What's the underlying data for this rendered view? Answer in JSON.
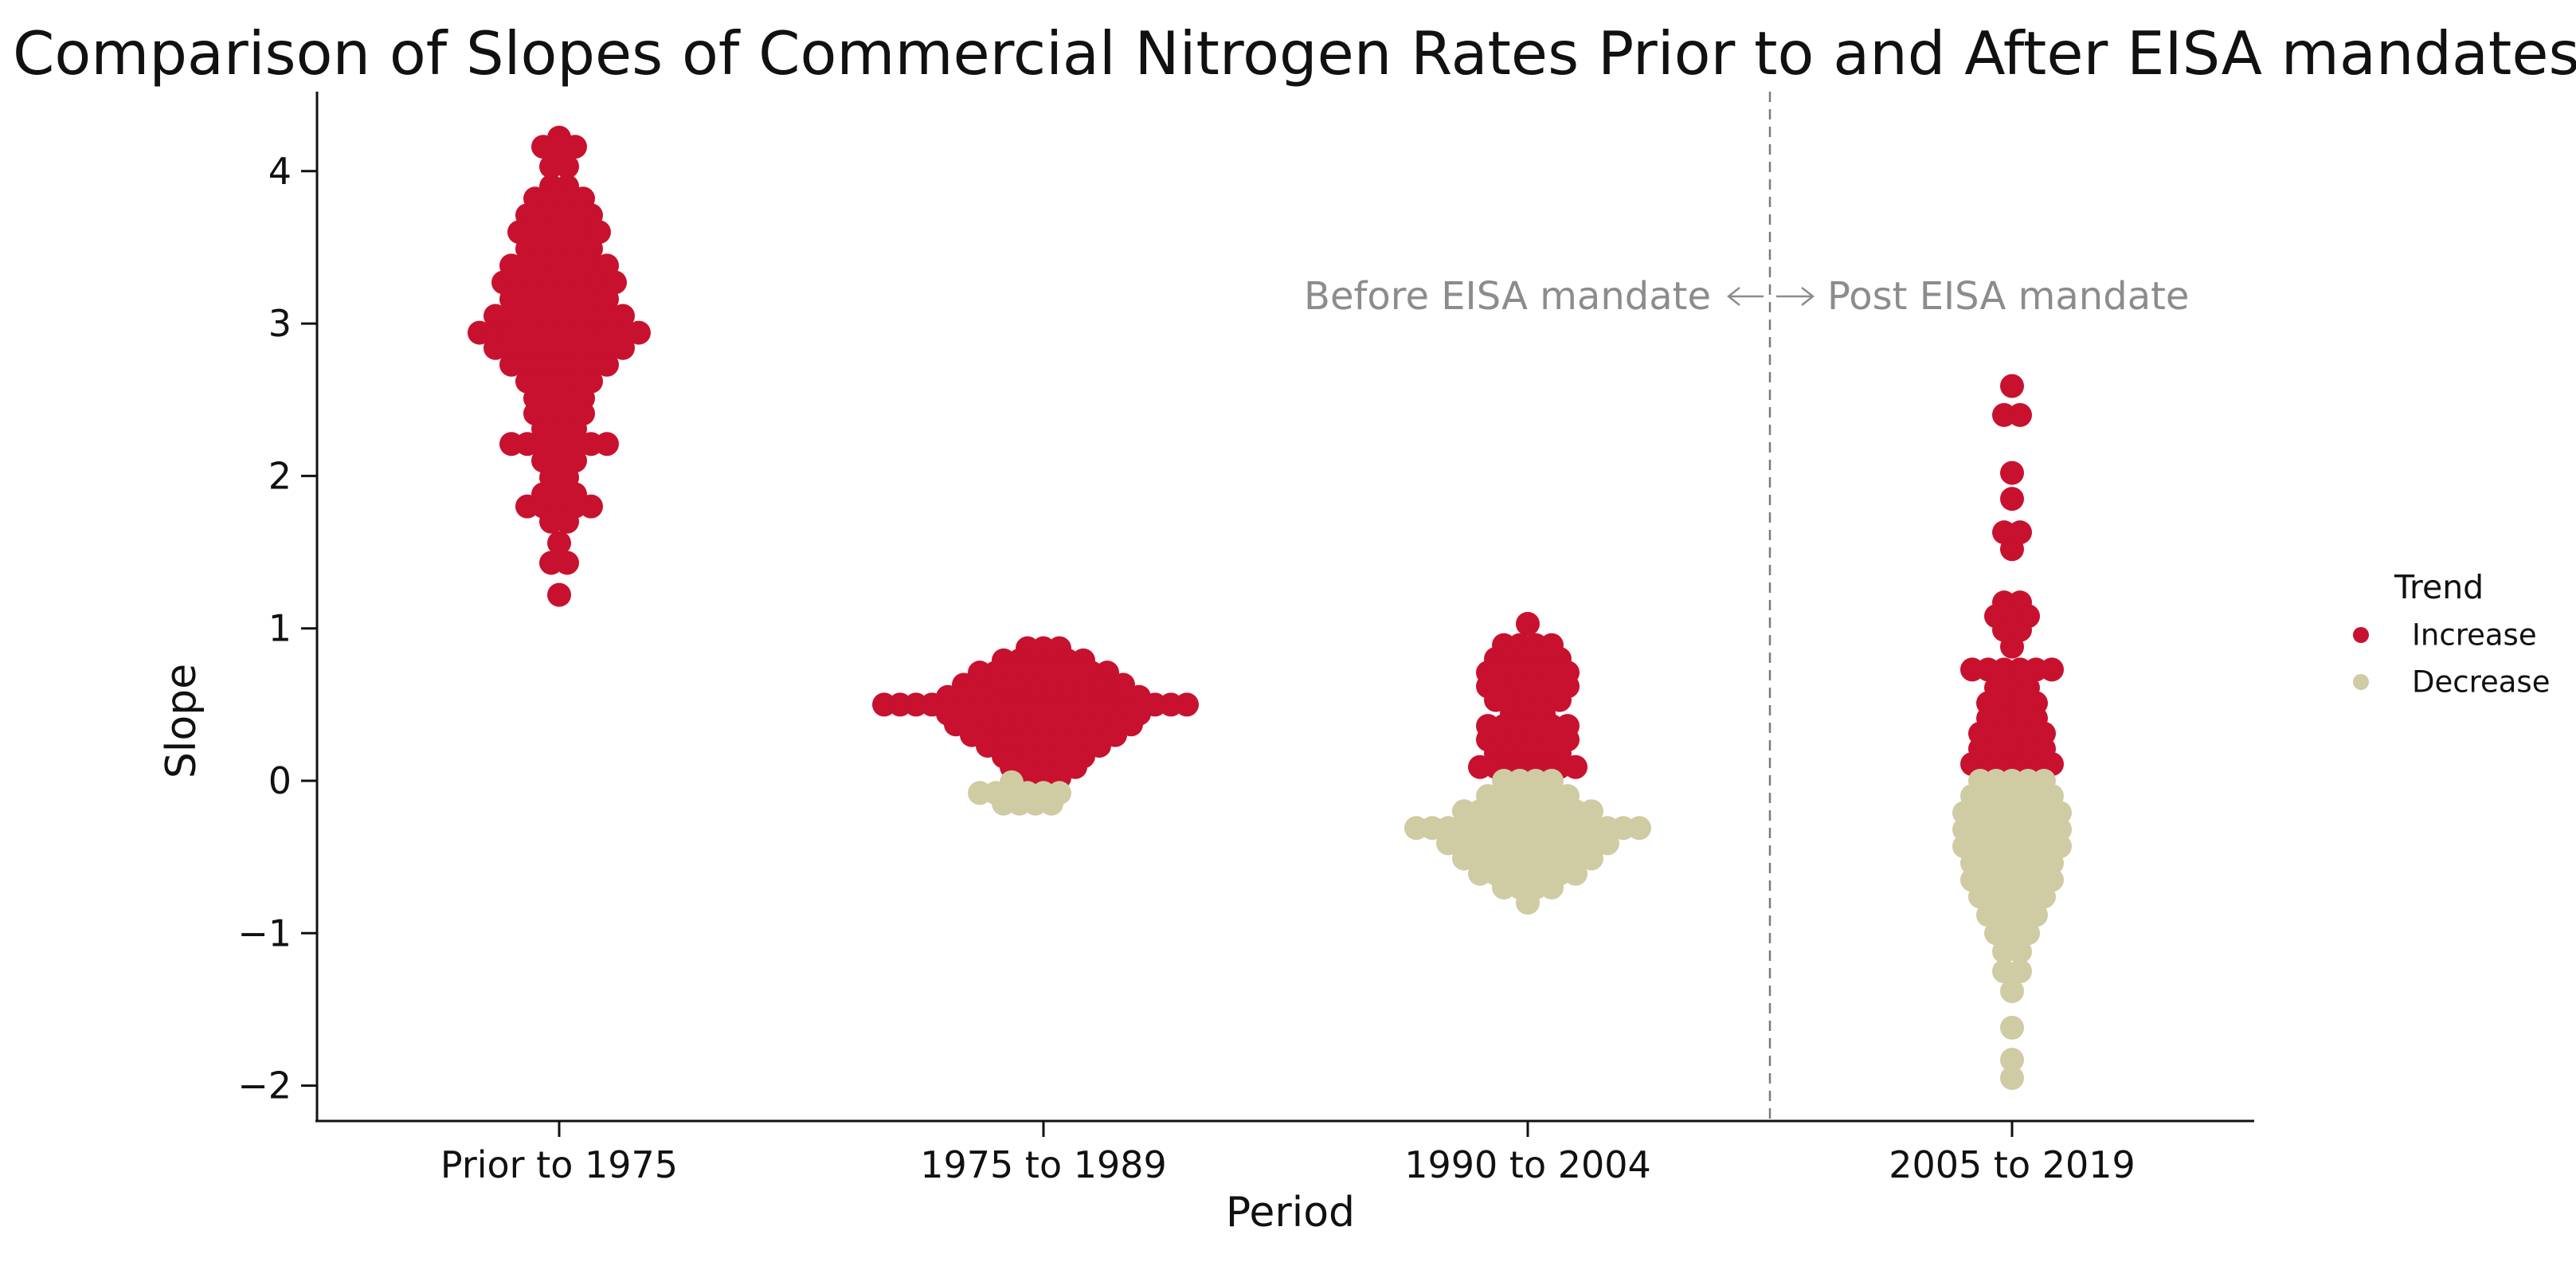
{
  "title": "Comparison of Slopes of Commercial Nitrogen Rates Prior to and After EISA mandates",
  "axes": {
    "x_label": "Period",
    "y_label": "Slope",
    "y_ticks": [
      4,
      3,
      2,
      1,
      0,
      -1,
      -2
    ]
  },
  "annotation": {
    "before": "Before EISA mandate",
    "after": "Post EISA mandate"
  },
  "legend": {
    "title": "Trend",
    "items": [
      {
        "label": "Increase",
        "color": "#c8112f"
      },
      {
        "label": "Decrease",
        "color": "#cfcba3"
      }
    ]
  },
  "chart_data": {
    "type": "scatter",
    "variant": "beeswarm",
    "title": "Comparison of Slopes of Commercial Nitrogen Rates Prior to and After EISA mandates",
    "xlabel": "Period",
    "ylabel": "Slope",
    "ylim": [
      -2.3,
      4.55
    ],
    "y_ticks": [
      4,
      3,
      2,
      1,
      0,
      -1,
      -2
    ],
    "grid": false,
    "legend_position": "right-outside",
    "categories": [
      "Prior to 1975",
      "1975 to 1989",
      "1990 to 2004",
      "2005 to 2019"
    ],
    "divider": {
      "position": "between 1990 to 2004 and 2005 to 2019",
      "label_left": "Before EISA mandate",
      "label_right": "Post EISA mandate"
    },
    "series": [
      {
        "name": "Increase",
        "color": "#c8112f"
      },
      {
        "name": "Decrease",
        "color": "#cfcba3"
      }
    ],
    "row_format": "[slope, dot_count, trend, optional_center_offset_in_dots]",
    "clusters": [
      {
        "category": "Prior to 1975",
        "rows": [
          [
            4.22,
            1,
            "Increase"
          ],
          [
            4.16,
            3,
            "Increase"
          ],
          [
            4.03,
            2,
            "Increase"
          ],
          [
            3.9,
            2,
            "Increase"
          ],
          [
            3.82,
            4,
            "Increase"
          ],
          [
            3.71,
            5,
            "Increase"
          ],
          [
            3.6,
            6,
            "Increase"
          ],
          [
            3.49,
            5,
            "Increase"
          ],
          [
            3.38,
            7,
            "Increase"
          ],
          [
            3.27,
            8,
            "Increase"
          ],
          [
            3.16,
            7,
            "Increase"
          ],
          [
            3.05,
            9,
            "Increase"
          ],
          [
            2.94,
            11,
            "Increase"
          ],
          [
            2.84,
            9,
            "Increase"
          ],
          [
            2.73,
            7,
            "Increase"
          ],
          [
            2.62,
            5,
            "Increase"
          ],
          [
            2.51,
            4,
            "Increase"
          ],
          [
            2.41,
            4,
            "Increase"
          ],
          [
            2.31,
            3,
            "Increase"
          ],
          [
            2.21,
            7,
            "Increase"
          ],
          [
            2.1,
            3,
            "Increase"
          ],
          [
            1.99,
            2,
            "Increase"
          ],
          [
            1.88,
            3,
            "Increase"
          ],
          [
            1.8,
            5,
            "Increase"
          ],
          [
            1.7,
            2,
            "Increase"
          ],
          [
            1.56,
            1,
            "Increase"
          ],
          [
            1.43,
            2,
            "Increase"
          ],
          [
            1.22,
            1,
            "Increase"
          ]
        ]
      },
      {
        "category": "1975 to 1989",
        "rows": [
          [
            0.87,
            3,
            "Increase"
          ],
          [
            0.79,
            6,
            "Increase"
          ],
          [
            0.71,
            9,
            "Increase"
          ],
          [
            0.63,
            11,
            "Increase"
          ],
          [
            0.55,
            13,
            "Increase"
          ],
          [
            0.5,
            20,
            "Increase",
            -0.5
          ],
          [
            0.44,
            13,
            "Increase"
          ],
          [
            0.37,
            12,
            "Increase"
          ],
          [
            0.3,
            10,
            "Increase"
          ],
          [
            0.23,
            8,
            "Increase"
          ],
          [
            0.16,
            6,
            "Increase"
          ],
          [
            0.09,
            5,
            "Increase"
          ],
          [
            0.02,
            3,
            "Increase"
          ],
          [
            -0.01,
            1,
            "Decrease",
            -2
          ],
          [
            -0.08,
            6,
            "Decrease",
            -1.5
          ],
          [
            -0.15,
            4,
            "Decrease",
            -1
          ]
        ]
      },
      {
        "category": "1990 to 2004",
        "rows": [
          [
            1.03,
            1,
            "Increase"
          ],
          [
            0.89,
            4,
            "Increase"
          ],
          [
            0.8,
            5,
            "Increase"
          ],
          [
            0.71,
            6,
            "Increase"
          ],
          [
            0.62,
            6,
            "Increase"
          ],
          [
            0.53,
            5,
            "Increase"
          ],
          [
            0.44,
            3,
            "Increase"
          ],
          [
            0.36,
            6,
            "Increase"
          ],
          [
            0.27,
            6,
            "Increase"
          ],
          [
            0.18,
            5,
            "Increase"
          ],
          [
            0.09,
            7,
            "Increase"
          ],
          [
            0.0,
            4,
            "Decrease"
          ],
          [
            -0.1,
            6,
            "Decrease"
          ],
          [
            -0.2,
            9,
            "Decrease"
          ],
          [
            -0.31,
            15,
            "Decrease"
          ],
          [
            -0.41,
            11,
            "Decrease"
          ],
          [
            -0.51,
            9,
            "Decrease"
          ],
          [
            -0.61,
            7,
            "Decrease"
          ],
          [
            -0.7,
            4,
            "Decrease"
          ],
          [
            -0.8,
            1,
            "Decrease"
          ]
        ]
      },
      {
        "category": "2005 to 2019",
        "rows": [
          [
            2.59,
            1,
            "Increase"
          ],
          [
            2.4,
            2,
            "Increase"
          ],
          [
            2.02,
            1,
            "Increase"
          ],
          [
            1.85,
            1,
            "Increase"
          ],
          [
            1.63,
            2,
            "Increase"
          ],
          [
            1.52,
            1,
            "Increase"
          ],
          [
            1.17,
            2,
            "Increase"
          ],
          [
            1.08,
            3,
            "Increase"
          ],
          [
            0.99,
            2,
            "Increase"
          ],
          [
            0.88,
            1,
            "Increase"
          ],
          [
            0.73,
            6,
            "Increase"
          ],
          [
            0.61,
            3,
            "Increase"
          ],
          [
            0.51,
            4,
            "Increase"
          ],
          [
            0.41,
            4,
            "Increase"
          ],
          [
            0.31,
            5,
            "Increase"
          ],
          [
            0.21,
            5,
            "Increase"
          ],
          [
            0.11,
            6,
            "Increase"
          ],
          [
            0.0,
            5,
            "Decrease"
          ],
          [
            -0.1,
            6,
            "Decrease"
          ],
          [
            -0.21,
            7,
            "Decrease"
          ],
          [
            -0.32,
            7,
            "Decrease"
          ],
          [
            -0.43,
            7,
            "Decrease"
          ],
          [
            -0.54,
            6,
            "Decrease"
          ],
          [
            -0.65,
            6,
            "Decrease"
          ],
          [
            -0.76,
            5,
            "Decrease"
          ],
          [
            -0.88,
            4,
            "Decrease"
          ],
          [
            -1.0,
            3,
            "Decrease"
          ],
          [
            -1.12,
            2,
            "Decrease"
          ],
          [
            -1.25,
            2,
            "Decrease"
          ],
          [
            -1.38,
            1,
            "Decrease"
          ],
          [
            -1.62,
            1,
            "Decrease"
          ],
          [
            -1.83,
            1,
            "Decrease"
          ],
          [
            -1.95,
            1,
            "Decrease"
          ]
        ]
      }
    ]
  },
  "style": {
    "dot_color_increase": "#c8112f",
    "dot_color_decrease": "#cfcba3",
    "divider_color": "#7a7a7a",
    "annotation_color": "#8c8c8c",
    "axis_color": "#111111",
    "background": "#ffffff"
  }
}
